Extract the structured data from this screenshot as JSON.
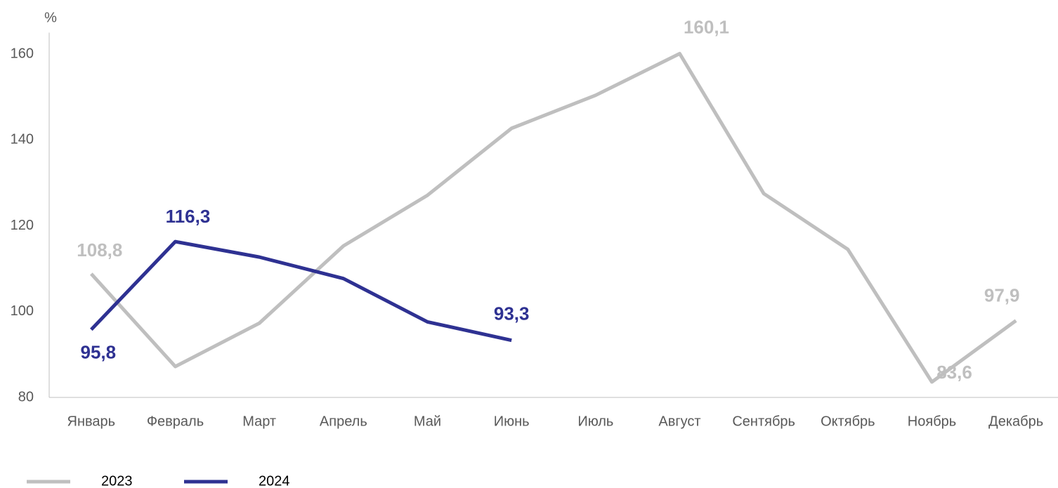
{
  "chart_data": {
    "type": "line",
    "y_label": "%",
    "categories": [
      "Январь",
      "Февраль",
      "Март",
      "Апрель",
      "Май",
      "Июнь",
      "Июль",
      "Август",
      "Сентябрь",
      "Октябрь",
      "Ноябрь",
      "Декабрь"
    ],
    "series": [
      {
        "name": "2023",
        "color": "#bfbfbf",
        "values": [
          108.8,
          87.2,
          97.3,
          115.3,
          127.1,
          142.7,
          150.4,
          160.1,
          127.5,
          114.5,
          83.6,
          97.9
        ],
        "value_labels": [
          "108,8",
          null,
          null,
          null,
          null,
          null,
          null,
          "160,1",
          null,
          null,
          "83,6",
          "97,9"
        ]
      },
      {
        "name": "2024",
        "color": "#2e3192",
        "values": [
          95.8,
          116.3,
          112.7,
          107.7,
          97.6,
          93.3,
          null,
          null,
          null,
          null,
          null,
          null
        ],
        "value_labels": [
          "95,8",
          "116,3",
          null,
          null,
          null,
          "93,3",
          null,
          null,
          null,
          null,
          null,
          null
        ]
      }
    ],
    "ylim": [
      80,
      165
    ],
    "yticks": [
      80,
      100,
      120,
      140,
      160
    ],
    "grid": false,
    "legend": "bottom-left"
  }
}
